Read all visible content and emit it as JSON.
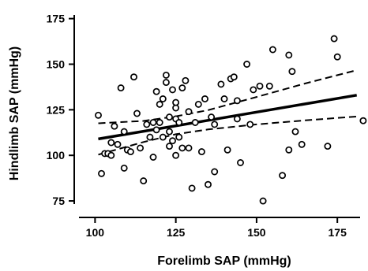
{
  "chart_data": {
    "type": "scatter",
    "title": "",
    "xlabel": "Forelimb SAP (mmHg)",
    "ylabel": "Hindlimb SAP  (mmHg)",
    "xlim": [
      96,
      184
    ],
    "ylim": [
      72,
      177
    ],
    "xticks": [
      100,
      125,
      150,
      175
    ],
    "yticks": [
      75,
      100,
      125,
      150,
      175
    ],
    "grid": false,
    "legend": "none",
    "points": [
      [
        101,
        122
      ],
      [
        102,
        90
      ],
      [
        103,
        101
      ],
      [
        104,
        101
      ],
      [
        105,
        107
      ],
      [
        105,
        100
      ],
      [
        106,
        116
      ],
      [
        107,
        106
      ],
      [
        108,
        137
      ],
      [
        109,
        113
      ],
      [
        109,
        93
      ],
      [
        110,
        103
      ],
      [
        111,
        102
      ],
      [
        112,
        143
      ],
      [
        113,
        123
      ],
      [
        114,
        104
      ],
      [
        115,
        86
      ],
      [
        116,
        117
      ],
      [
        117,
        110
      ],
      [
        118,
        118
      ],
      [
        118,
        99
      ],
      [
        119,
        135
      ],
      [
        119,
        114
      ],
      [
        120,
        118
      ],
      [
        120,
        128
      ],
      [
        121,
        131
      ],
      [
        121,
        110
      ],
      [
        122,
        144
      ],
      [
        122,
        140
      ],
      [
        123,
        121
      ],
      [
        123,
        113
      ],
      [
        123,
        105
      ],
      [
        124,
        136
      ],
      [
        124,
        108
      ],
      [
        125,
        126
      ],
      [
        125,
        129
      ],
      [
        125,
        120
      ],
      [
        125,
        100
      ],
      [
        126,
        118
      ],
      [
        126,
        110
      ],
      [
        127,
        137
      ],
      [
        127,
        104
      ],
      [
        128,
        141
      ],
      [
        129,
        124
      ],
      [
        129,
        104
      ],
      [
        130,
        82
      ],
      [
        131,
        118
      ],
      [
        132,
        128
      ],
      [
        133,
        102
      ],
      [
        134,
        131
      ],
      [
        135,
        84
      ],
      [
        136,
        121
      ],
      [
        137,
        117
      ],
      [
        137,
        91
      ],
      [
        139,
        139
      ],
      [
        140,
        131
      ],
      [
        141,
        103
      ],
      [
        142,
        142
      ],
      [
        143,
        143
      ],
      [
        144,
        130
      ],
      [
        144,
        120
      ],
      [
        145,
        96
      ],
      [
        147,
        150
      ],
      [
        148,
        117
      ],
      [
        149,
        136
      ],
      [
        151,
        138
      ],
      [
        152,
        75
      ],
      [
        154,
        138
      ],
      [
        155,
        158
      ],
      [
        158,
        89
      ],
      [
        160,
        155
      ],
      [
        161,
        146
      ],
      [
        160,
        103
      ],
      [
        162,
        113
      ],
      [
        164,
        106
      ],
      [
        172,
        105
      ],
      [
        174,
        164
      ],
      [
        175,
        154
      ],
      [
        183,
        119
      ]
    ],
    "regression_line": {
      "x": [
        101,
        181
      ],
      "y": [
        109,
        133
      ]
    },
    "confidence_bands": {
      "upper": {
        "x": [
          101,
          115,
          125,
          135,
          150,
          165,
          181
        ],
        "y": [
          117.6,
          118.9,
          121.4,
          124.8,
          132.0,
          139.4,
          146.7
        ]
      },
      "lower": {
        "x": [
          101,
          115,
          125,
          135,
          150,
          165,
          181
        ],
        "y": [
          100.4,
          107.3,
          111.6,
          114.2,
          117.0,
          119.2,
          121.3
        ]
      }
    }
  }
}
